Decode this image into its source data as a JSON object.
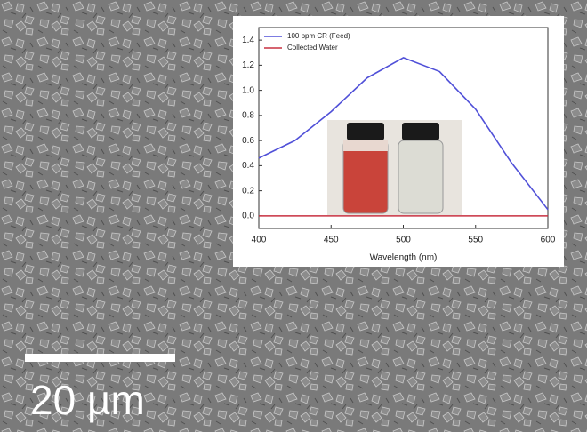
{
  "chart_data": {
    "type": "line",
    "x_label": "Wavelength (nm)",
    "x": [
      400,
      425,
      450,
      475,
      500,
      525,
      550,
      575,
      600
    ],
    "series": [
      {
        "name": "100 ppm CR (Feed)",
        "color": "#5050d8",
        "values": [
          0.46,
          0.6,
          0.83,
          1.1,
          1.26,
          1.15,
          0.85,
          0.42,
          0.05
        ]
      },
      {
        "name": "Collected Water",
        "color": "#c83040",
        "values": [
          0,
          0,
          0,
          0,
          0,
          0,
          0,
          0,
          0
        ]
      }
    ],
    "xlim": [
      400,
      600
    ],
    "xticks": [
      400,
      450,
      500,
      550,
      600
    ],
    "ylim": [
      -0.1,
      1.5
    ],
    "yticks": [
      {
        "value": 0,
        "label": "0.0"
      },
      0.2,
      0.4,
      0.6,
      0.8,
      {
        "value": 1,
        "label": "1.0"
      },
      1.2,
      1.4
    ],
    "legend": "upper-left",
    "scale_bar": "20 µm"
  }
}
